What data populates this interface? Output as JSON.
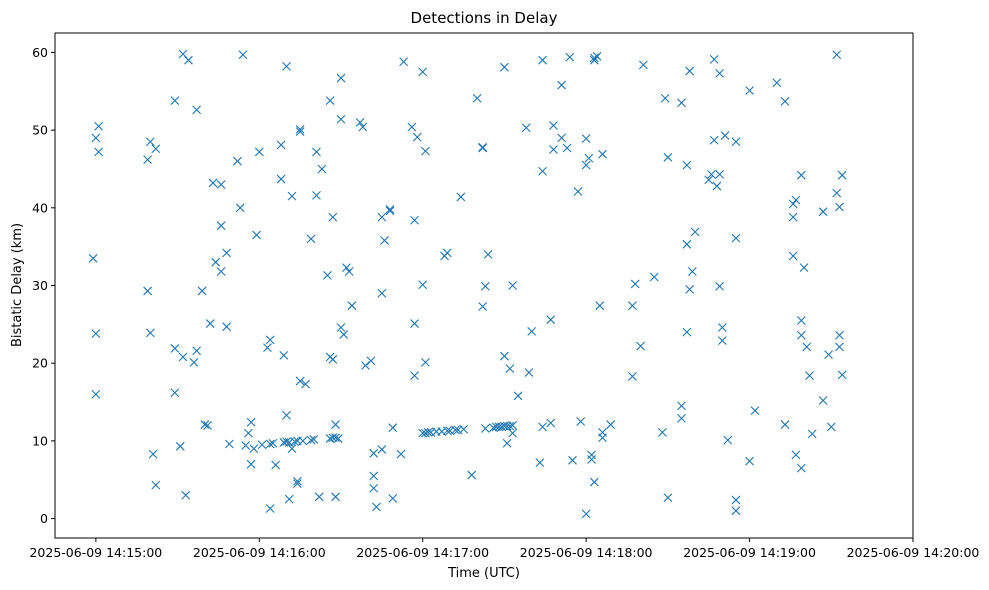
{
  "chart_data": {
    "type": "scatter",
    "title": "Detections in Delay",
    "xlabel": "Time (UTC)",
    "ylabel": "Bistatic Delay (km)",
    "marker": "x",
    "color": "#1f77b4",
    "xlim": [
      "2025-06-09 14:14:45",
      "2025-06-09 14:20:00"
    ],
    "ylim": [
      -2.5,
      62.5
    ],
    "xticks": [
      "2025-06-09 14:15:00",
      "2025-06-09 14:16:00",
      "2025-06-09 14:17:00",
      "2025-06-09 14:18:00",
      "2025-06-09 14:19:00",
      "2025-06-09 14:20:00"
    ],
    "yticks": [
      0,
      10,
      20,
      30,
      40,
      50,
      60
    ],
    "grid": false,
    "series": [
      {
        "points": [
          [
            "14:14:59",
            33.5
          ],
          [
            "14:15:00",
            49.0
          ],
          [
            "14:15:01",
            50.5
          ],
          [
            "14:15:01",
            47.2
          ],
          [
            "14:15:00",
            23.8
          ],
          [
            "14:15:00",
            16.0
          ],
          [
            "14:15:19",
            46.2
          ],
          [
            "14:15:20",
            48.5
          ],
          [
            "14:15:22",
            47.6
          ],
          [
            "14:15:19",
            29.3
          ],
          [
            "14:15:20",
            23.9
          ],
          [
            "14:15:21",
            8.3
          ],
          [
            "14:15:22",
            4.3
          ],
          [
            "14:15:29",
            53.8
          ],
          [
            "14:15:32",
            59.8
          ],
          [
            "14:15:34",
            59.0
          ],
          [
            "14:15:37",
            52.6
          ],
          [
            "14:15:29",
            21.9
          ],
          [
            "14:15:32",
            20.8
          ],
          [
            "14:15:36",
            20.1
          ],
          [
            "14:15:37",
            21.6
          ],
          [
            "14:15:29",
            16.2
          ],
          [
            "14:15:31",
            9.3
          ],
          [
            "14:15:33",
            3.0
          ],
          [
            "14:15:39",
            29.3
          ],
          [
            "14:15:40",
            12.1
          ],
          [
            "14:15:41",
            12.0
          ],
          [
            "14:15:42",
            25.1
          ],
          [
            "14:15:43",
            43.2
          ],
          [
            "14:15:44",
            33.0
          ],
          [
            "14:15:46",
            43.0
          ],
          [
            "14:15:46",
            37.7
          ],
          [
            "14:15:46",
            31.8
          ],
          [
            "14:15:48",
            34.2
          ],
          [
            "14:15:48",
            24.7
          ],
          [
            "14:15:49",
            9.6
          ],
          [
            "14:15:52",
            46.0
          ],
          [
            "14:15:53",
            40.0
          ],
          [
            "14:15:54",
            59.7
          ],
          [
            "14:15:55",
            9.4
          ],
          [
            "14:15:56",
            11.0
          ],
          [
            "14:15:57",
            12.4
          ],
          [
            "14:15:57",
            7.0
          ],
          [
            "14:15:58",
            9.0
          ],
          [
            "14:15:59",
            36.5
          ],
          [
            "14:16:00",
            47.2
          ],
          [
            "14:16:01",
            9.5
          ],
          [
            "14:16:03",
            22.0
          ],
          [
            "14:16:04",
            23.0
          ],
          [
            "14:16:04",
            9.6
          ],
          [
            "14:16:04",
            1.3
          ],
          [
            "14:16:05",
            9.7
          ],
          [
            "14:16:06",
            6.9
          ],
          [
            "14:16:08",
            48.1
          ],
          [
            "14:16:08",
            43.7
          ],
          [
            "14:16:09",
            9.8
          ],
          [
            "14:16:09",
            21.0
          ],
          [
            "14:16:10",
            58.2
          ],
          [
            "14:16:10",
            13.3
          ],
          [
            "14:16:10",
            9.9
          ],
          [
            "14:16:11",
            9.8
          ],
          [
            "14:16:11",
            2.5
          ],
          [
            "14:16:12",
            41.5
          ],
          [
            "14:16:12",
            9.0
          ],
          [
            "14:16:13",
            9.9
          ],
          [
            "14:16:14",
            10.0
          ],
          [
            "14:16:14",
            4.8
          ],
          [
            "14:16:14",
            4.5
          ],
          [
            "14:16:15",
            50.1
          ],
          [
            "14:16:15",
            49.8
          ],
          [
            "14:16:15",
            17.7
          ],
          [
            "14:16:16",
            10.0
          ],
          [
            "14:16:17",
            17.3
          ],
          [
            "14:16:19",
            36.0
          ],
          [
            "14:16:19",
            10.1
          ],
          [
            "14:16:20",
            10.2
          ],
          [
            "14:16:21",
            47.2
          ],
          [
            "14:16:21",
            41.6
          ],
          [
            "14:16:22",
            2.8
          ],
          [
            "14:16:23",
            45.0
          ],
          [
            "14:16:25",
            31.3
          ],
          [
            "14:16:26",
            53.8
          ],
          [
            "14:16:26",
            20.8
          ],
          [
            "14:16:26",
            10.3
          ],
          [
            "14:16:27",
            38.8
          ],
          [
            "14:16:27",
            20.5
          ],
          [
            "14:16:27",
            10.4
          ],
          [
            "14:16:28",
            12.1
          ],
          [
            "14:16:28",
            10.4
          ],
          [
            "14:16:29",
            10.3
          ],
          [
            "14:16:28",
            2.8
          ],
          [
            "14:16:30",
            56.7
          ],
          [
            "14:16:30",
            51.4
          ],
          [
            "14:16:30",
            24.6
          ],
          [
            "14:16:31",
            23.7
          ],
          [
            "14:16:32",
            32.3
          ],
          [
            "14:16:33",
            31.8
          ],
          [
            "14:16:34",
            27.4
          ],
          [
            "14:16:37",
            51.0
          ],
          [
            "14:16:38",
            50.4
          ],
          [
            "14:16:39",
            19.7
          ],
          [
            "14:16:41",
            20.3
          ],
          [
            "14:16:42",
            5.5
          ],
          [
            "14:16:42",
            3.9
          ],
          [
            "14:16:42",
            8.4
          ],
          [
            "14:16:43",
            1.5
          ],
          [
            "14:16:45",
            8.9
          ],
          [
            "14:16:45",
            38.8
          ],
          [
            "14:16:45",
            29.0
          ],
          [
            "14:16:46",
            35.8
          ],
          [
            "14:16:48",
            39.6
          ],
          [
            "14:16:48",
            39.8
          ],
          [
            "14:16:49",
            11.7
          ],
          [
            "14:16:49",
            2.6
          ],
          [
            "14:16:52",
            8.3
          ],
          [
            "14:16:53",
            58.8
          ],
          [
            "14:16:56",
            50.4
          ],
          [
            "14:16:57",
            38.4
          ],
          [
            "14:16:57",
            25.1
          ],
          [
            "14:16:57",
            18.4
          ],
          [
            "14:16:58",
            49.1
          ],
          [
            "14:17:00",
            30.1
          ],
          [
            "14:17:00",
            57.5
          ],
          [
            "14:17:01",
            47.3
          ],
          [
            "14:17:01",
            20.1
          ],
          [
            "14:17:00",
            11.0
          ],
          [
            "14:17:01",
            11.0
          ],
          [
            "14:17:02",
            11.1
          ],
          [
            "14:17:03",
            11.1
          ],
          [
            "14:17:05",
            11.2
          ],
          [
            "14:17:07",
            11.2
          ],
          [
            "14:17:09",
            11.3
          ],
          [
            "14:17:10",
            11.3
          ],
          [
            "14:17:12",
            11.4
          ],
          [
            "14:17:13",
            11.4
          ],
          [
            "14:17:15",
            11.5
          ],
          [
            "14:17:08",
            33.8
          ],
          [
            "14:17:09",
            34.2
          ],
          [
            "14:17:14",
            41.4
          ],
          [
            "14:17:18",
            5.6
          ],
          [
            "14:17:20",
            54.1
          ],
          [
            "14:17:22",
            47.8
          ],
          [
            "14:17:22",
            47.7
          ],
          [
            "14:17:22",
            27.3
          ],
          [
            "14:17:23",
            29.9
          ],
          [
            "14:17:24",
            34.0
          ],
          [
            "14:17:23",
            11.6
          ],
          [
            "14:17:26",
            11.7
          ],
          [
            "14:17:27",
            11.8
          ],
          [
            "14:17:28",
            11.8
          ],
          [
            "14:17:29",
            11.8
          ],
          [
            "14:17:30",
            11.9
          ],
          [
            "14:17:31",
            11.9
          ],
          [
            "14:17:32",
            11.9
          ],
          [
            "14:17:33",
            12.0
          ],
          [
            "14:17:30",
            20.9
          ],
          [
            "14:17:31",
            9.7
          ],
          [
            "14:17:32",
            19.3
          ],
          [
            "14:17:33",
            11.0
          ],
          [
            "14:17:33",
            30.0
          ],
          [
            "14:17:30",
            58.1
          ],
          [
            "14:17:35",
            15.8
          ],
          [
            "14:17:38",
            50.3
          ],
          [
            "14:17:39",
            18.8
          ],
          [
            "14:17:40",
            24.1
          ],
          [
            "14:17:44",
            59.0
          ],
          [
            "14:17:44",
            44.7
          ],
          [
            "14:17:43",
            7.2
          ],
          [
            "14:17:44",
            11.8
          ],
          [
            "14:17:47",
            12.3
          ],
          [
            "14:17:47",
            25.6
          ],
          [
            "14:17:48",
            50.6
          ],
          [
            "14:17:48",
            47.5
          ],
          [
            "14:17:51",
            49.0
          ],
          [
            "14:17:51",
            55.8
          ],
          [
            "14:17:54",
            59.4
          ],
          [
            "14:17:53",
            47.7
          ],
          [
            "14:17:55",
            7.5
          ],
          [
            "14:17:57",
            42.1
          ],
          [
            "14:17:58",
            12.5
          ],
          [
            "14:18:00",
            48.9
          ],
          [
            "14:18:00",
            45.5
          ],
          [
            "14:18:00",
            0.6
          ],
          [
            "14:18:01",
            46.4
          ],
          [
            "14:18:02",
            8.2
          ],
          [
            "14:18:02",
            7.6
          ],
          [
            "14:18:03",
            59.3
          ],
          [
            "14:18:03",
            59.0
          ],
          [
            "14:18:04",
            59.5
          ],
          [
            "14:18:03",
            4.7
          ],
          [
            "14:18:05",
            27.4
          ],
          [
            "14:18:06",
            11.1
          ],
          [
            "14:18:06",
            10.4
          ],
          [
            "14:18:06",
            46.9
          ],
          [
            "14:18:09",
            12.1
          ],
          [
            "14:18:17",
            27.4
          ],
          [
            "14:18:17",
            18.3
          ],
          [
            "14:18:18",
            30.2
          ],
          [
            "14:18:20",
            22.2
          ],
          [
            "14:18:21",
            58.4
          ],
          [
            "14:18:25",
            31.1
          ],
          [
            "14:18:28",
            11.1
          ],
          [
            "14:18:29",
            54.1
          ],
          [
            "14:18:30",
            2.7
          ],
          [
            "14:18:30",
            46.5
          ],
          [
            "14:18:35",
            53.5
          ],
          [
            "14:18:35",
            14.5
          ],
          [
            "14:18:35",
            12.9
          ],
          [
            "14:18:37",
            45.5
          ],
          [
            "14:18:37",
            35.3
          ],
          [
            "14:18:37",
            24.0
          ],
          [
            "14:18:38",
            29.5
          ],
          [
            "14:18:38",
            57.6
          ],
          [
            "14:18:39",
            31.8
          ],
          [
            "14:18:40",
            36.9
          ],
          [
            "14:18:45",
            43.6
          ],
          [
            "14:18:46",
            44.3
          ],
          [
            "14:18:47",
            48.7
          ],
          [
            "14:18:47",
            59.1
          ],
          [
            "14:18:48",
            42.8
          ],
          [
            "14:18:49",
            44.3
          ],
          [
            "14:18:49",
            29.9
          ],
          [
            "14:18:49",
            57.3
          ],
          [
            "14:18:50",
            24.6
          ],
          [
            "14:18:50",
            22.9
          ],
          [
            "14:18:51",
            49.3
          ],
          [
            "14:18:52",
            10.1
          ],
          [
            "14:18:55",
            48.5
          ],
          [
            "14:18:55",
            36.1
          ],
          [
            "14:18:55",
            2.4
          ],
          [
            "14:18:55",
            1.0
          ],
          [
            "14:19:00",
            55.1
          ],
          [
            "14:19:00",
            7.4
          ],
          [
            "14:19:02",
            13.9
          ],
          [
            "14:19:10",
            56.1
          ],
          [
            "14:19:13",
            53.7
          ],
          [
            "14:19:13",
            12.1
          ],
          [
            "14:19:16",
            33.8
          ],
          [
            "14:19:16",
            38.8
          ],
          [
            "14:19:16",
            40.5
          ],
          [
            "14:19:17",
            41.0
          ],
          [
            "14:19:17",
            8.2
          ],
          [
            "14:19:19",
            44.2
          ],
          [
            "14:19:19",
            25.5
          ],
          [
            "14:19:19",
            23.6
          ],
          [
            "14:19:19",
            6.5
          ],
          [
            "14:19:20",
            32.3
          ],
          [
            "14:19:21",
            22.1
          ],
          [
            "14:19:22",
            18.4
          ],
          [
            "14:19:23",
            10.9
          ],
          [
            "14:19:27",
            39.5
          ],
          [
            "14:19:27",
            15.2
          ],
          [
            "14:19:29",
            21.1
          ],
          [
            "14:19:30",
            11.8
          ],
          [
            "14:19:32",
            59.7
          ],
          [
            "14:19:32",
            41.9
          ],
          [
            "14:19:33",
            40.1
          ],
          [
            "14:19:33",
            23.6
          ],
          [
            "14:19:33",
            22.1
          ],
          [
            "14:19:34",
            44.2
          ],
          [
            "14:19:34",
            18.5
          ]
        ]
      }
    ]
  }
}
